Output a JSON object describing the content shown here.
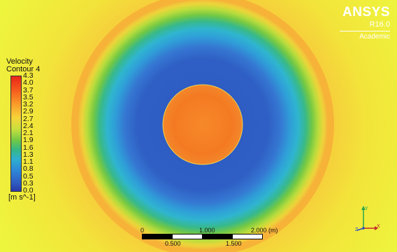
{
  "logo": {
    "name": "ANSYS",
    "version": "R16.0",
    "edition": "Academic"
  },
  "legend": {
    "title_line1": "Velocity",
    "title_line2": "Contour 4",
    "ticks": [
      "4.3",
      "4.0",
      "3.7",
      "3.5",
      "3.2",
      "2.9",
      "2.7",
      "2.4",
      "2.1",
      "1.9",
      "1.6",
      "1.3",
      "1.1",
      "0.8",
      "0.5",
      "0.3",
      "0.0"
    ],
    "units": "[m s^-1]"
  },
  "scale_bar": {
    "top_labels": [
      "0",
      "1.000",
      "2.000 (m)"
    ],
    "bottom_labels": [
      "0.500",
      "1.500"
    ]
  },
  "triad": {
    "x": "X",
    "y": "Y",
    "z": "Z"
  },
  "colors": {
    "background": "#f2e93a",
    "outer_ring": "#f6b13a",
    "green_ring": "#6cc74b",
    "cyan_ring": "#31b3d6",
    "blue_ring": "#2f5fc4",
    "inner_disk": "#f47d22"
  }
}
